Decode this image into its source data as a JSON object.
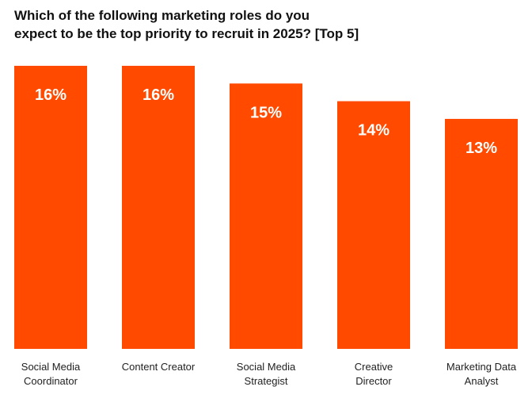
{
  "title_lines": [
    "Which of the following marketing roles do you",
    "expect to be the top priority to recruit in 2025? [Top 5]"
  ],
  "colors": {
    "bar": "#FF4A00",
    "value_text": "#FFFFFF",
    "label_text": "#222222"
  },
  "chart_data": {
    "type": "bar",
    "title": "Which of the following marketing roles do you expect to be the top priority to recruit in 2025? [Top 5]",
    "categories": [
      [
        "Social Media",
        "Coordinator"
      ],
      [
        "Content Creator"
      ],
      [
        "Social Media",
        "Strategist"
      ],
      [
        "Creative",
        "Director"
      ],
      [
        "Marketing Data",
        "Analyst"
      ]
    ],
    "values": [
      16,
      16,
      15,
      14,
      13
    ],
    "value_labels": [
      "16%",
      "16%",
      "15%",
      "14%",
      "13%"
    ],
    "ylim": [
      0,
      16
    ],
    "grid": false,
    "legend": "none"
  }
}
